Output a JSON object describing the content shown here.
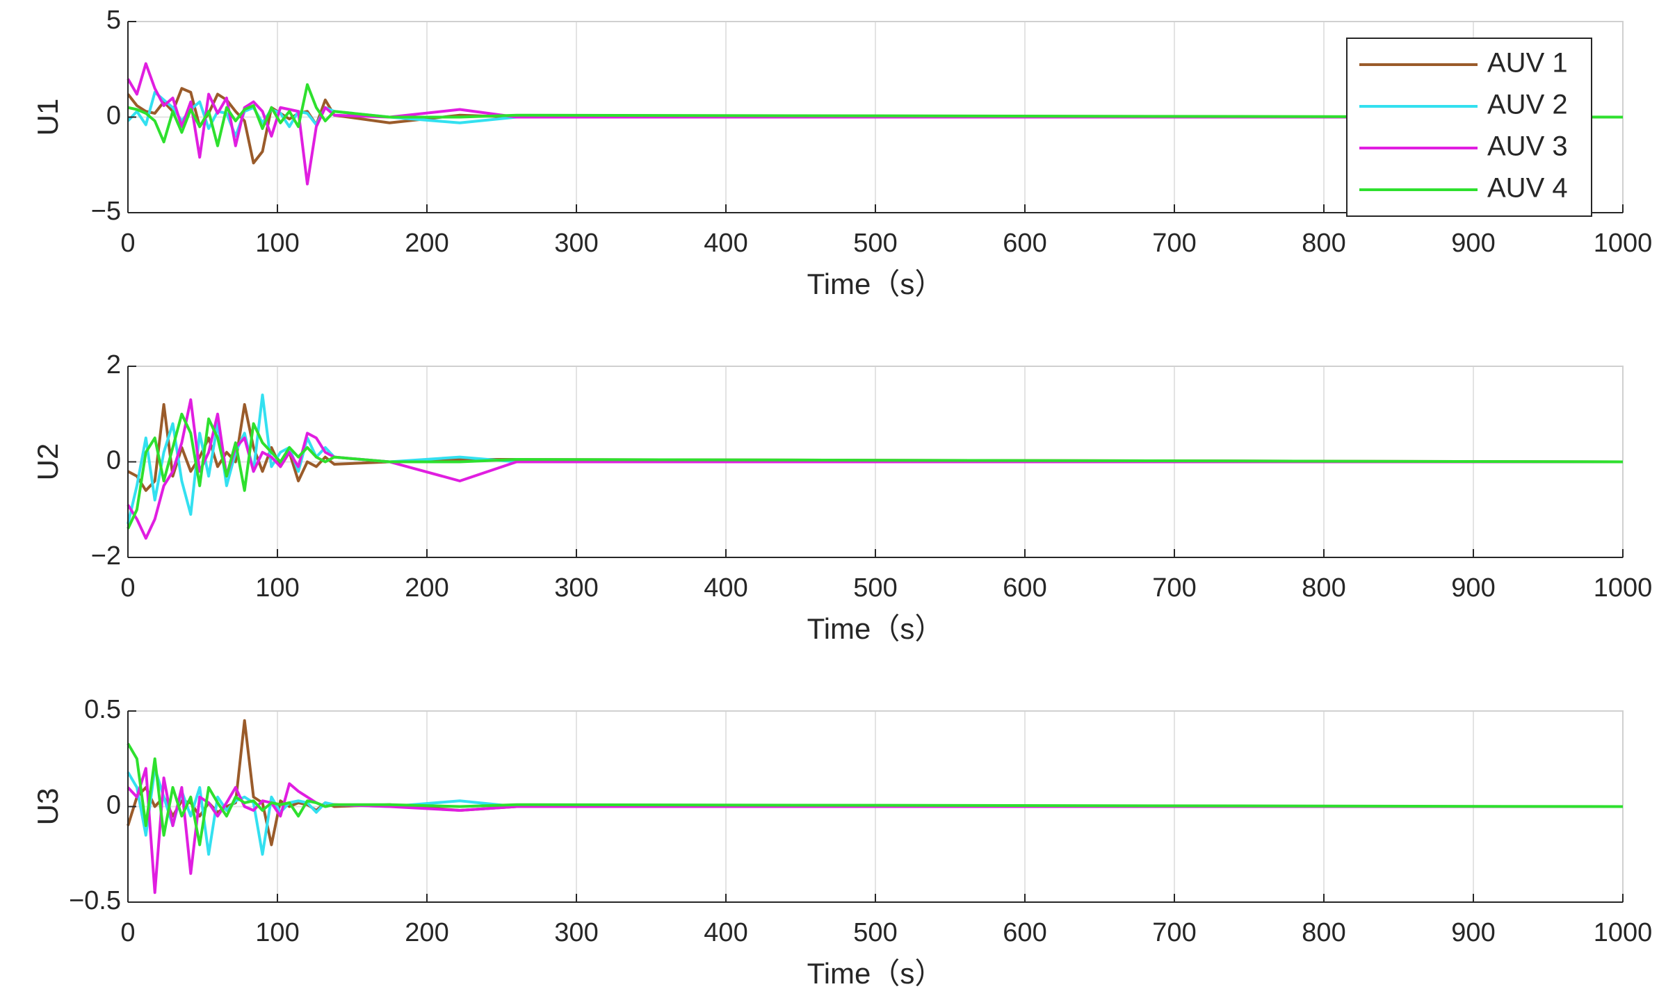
{
  "chart_data": [
    {
      "type": "line",
      "ylabel": "U1",
      "xlabel": "Time（s）",
      "grid": true,
      "legend": "upper right",
      "x": [
        0,
        6,
        12,
        18,
        24,
        30,
        36,
        42,
        48,
        54,
        60,
        66,
        72,
        78,
        84,
        90,
        96,
        102,
        108,
        114,
        120,
        126,
        132,
        138,
        175,
        222,
        260,
        1000
      ],
      "xlim": [
        0,
        1000
      ],
      "xticks": [
        0,
        100,
        200,
        300,
        400,
        500,
        600,
        700,
        800,
        900,
        1000
      ],
      "ylim": [
        -5,
        5
      ],
      "yticks": [
        {
          "value": -5,
          "label": "−5"
        },
        0,
        5
      ],
      "series": [
        {
          "name": "AUV 1",
          "color": "#9a5b2a",
          "values": [
            1.2,
            0.6,
            0.3,
            0.2,
            0.8,
            0.3,
            1.5,
            1.3,
            -0.5,
            0.2,
            1.2,
            0.9,
            0.3,
            -0.2,
            -2.4,
            -1.8,
            0.5,
            0.2,
            -0.1,
            0.2,
            0.3,
            -0.4,
            0.9,
            0.1,
            -0.3,
            0.1,
            0,
            0
          ]
        },
        {
          "name": "AUV 2",
          "color": "#33e0f0",
          "values": [
            -0.2,
            0.3,
            -0.4,
            1.3,
            0.9,
            0.5,
            -0.2,
            0.4,
            0.8,
            -0.6,
            0.3,
            0.2,
            -1.0,
            0.3,
            0.5,
            -0.3,
            0.4,
            0.2,
            -0.5,
            0.3,
            0.2,
            -0.4,
            0.5,
            0.3,
            0,
            -0.3,
            0,
            0
          ]
        },
        {
          "name": "AUV 3",
          "color": "#e01ee0",
          "values": [
            2.0,
            1.2,
            2.8,
            1.5,
            0.6,
            1.0,
            -0.5,
            0.8,
            -2.1,
            1.2,
            0.2,
            1.0,
            -1.5,
            0.5,
            0.8,
            0.3,
            -1.0,
            0.5,
            0.4,
            0.3,
            -3.5,
            -0.5,
            0.5,
            0.1,
            0,
            0.4,
            0,
            0
          ]
        },
        {
          "name": "AUV 4",
          "color": "#2ee02e",
          "values": [
            0.5,
            0.4,
            0.2,
            -0.2,
            -1.3,
            0.3,
            -0.8,
            0.4,
            -0.5,
            0.3,
            -1.5,
            0.5,
            -0.2,
            0.4,
            0.6,
            -0.6,
            0.5,
            -0.3,
            0.3,
            -0.5,
            1.7,
            0.5,
            -0.2,
            0.3,
            0,
            0,
            0.1,
            0
          ]
        }
      ]
    },
    {
      "type": "line",
      "ylabel": "U2",
      "xlabel": "Time（s）",
      "grid": true,
      "x": [
        0,
        6,
        12,
        18,
        24,
        30,
        36,
        42,
        48,
        54,
        60,
        66,
        72,
        78,
        84,
        90,
        96,
        102,
        108,
        114,
        120,
        126,
        132,
        138,
        175,
        222,
        260,
        1000
      ],
      "xlim": [
        0,
        1000
      ],
      "xticks": [
        0,
        100,
        200,
        300,
        400,
        500,
        600,
        700,
        800,
        900,
        1000
      ],
      "ylim": [
        -2,
        2
      ],
      "yticks": [
        {
          "value": -2,
          "label": "−2"
        },
        0,
        2
      ],
      "series": [
        {
          "color": "#9a5b2a",
          "values": [
            -0.2,
            -0.3,
            -0.6,
            -0.4,
            1.2,
            -0.3,
            0.3,
            -0.2,
            0.1,
            0.5,
            -0.1,
            0.2,
            0.0,
            1.2,
            0.3,
            -0.2,
            0.3,
            -0.1,
            0.2,
            -0.4,
            0.0,
            -0.1,
            0.1,
            -0.05,
            0,
            0.05,
            0.05,
            0
          ]
        },
        {
          "color": "#33e0f0",
          "values": [
            -1.3,
            -0.5,
            0.5,
            -0.8,
            0.2,
            0.8,
            -0.4,
            -1.1,
            0.6,
            -0.3,
            0.8,
            -0.5,
            0.2,
            0.6,
            -0.2,
            1.4,
            -0.1,
            0.2,
            0.3,
            -0.2,
            0.5,
            0.1,
            0.3,
            0.1,
            0,
            0.1,
            0,
            0
          ]
        },
        {
          "color": "#e01ee0",
          "values": [
            -0.9,
            -1.2,
            -1.6,
            -1.2,
            -0.5,
            -0.2,
            0.4,
            1.3,
            -0.2,
            0.2,
            1.0,
            -0.3,
            0.3,
            0.5,
            -0.2,
            0.2,
            0.1,
            -0.1,
            0.2,
            -0.1,
            0.6,
            0.5,
            0.2,
            0.1,
            0,
            -0.4,
            0,
            0
          ]
        },
        {
          "color": "#2ee02e",
          "values": [
            -1.4,
            -1.0,
            0.2,
            0.5,
            -0.4,
            0.3,
            1.0,
            0.6,
            -0.5,
            0.9,
            0.5,
            -0.3,
            0.4,
            -0.6,
            0.8,
            0.4,
            0.2,
            0.0,
            0.3,
            0.1,
            0.3,
            0.1,
            0.0,
            0.1,
            0,
            0,
            0.05,
            0
          ]
        }
      ]
    },
    {
      "type": "line",
      "ylabel": "U3",
      "xlabel": "Time（s）",
      "grid": true,
      "x": [
        0,
        6,
        12,
        18,
        24,
        30,
        36,
        42,
        48,
        54,
        60,
        66,
        72,
        78,
        84,
        90,
        96,
        102,
        108,
        114,
        120,
        126,
        132,
        138,
        175,
        222,
        260,
        1000
      ],
      "xlim": [
        0,
        1000
      ],
      "xticks": [
        0,
        100,
        200,
        300,
        400,
        500,
        600,
        700,
        800,
        900,
        1000
      ],
      "ylim": [
        -0.5,
        0.5
      ],
      "yticks": [
        {
          "value": -0.5,
          "label": "−0.5"
        },
        0,
        0.5
      ],
      "series": [
        {
          "color": "#9a5b2a",
          "values": [
            -0.1,
            0.05,
            0.1,
            0.0,
            0.05,
            -0.05,
            0.03,
            0.02,
            -0.05,
            0.02,
            -0.03,
            0.0,
            0.02,
            0.45,
            0.05,
            0.02,
            -0.2,
            0.03,
            0.0,
            0.02,
            0.01,
            -0.02,
            0.02,
            0.0,
            0.01,
            -0.02,
            0,
            0
          ]
        },
        {
          "color": "#33e0f0",
          "values": [
            0.18,
            0.1,
            -0.15,
            0.2,
            0.05,
            -0.1,
            0.08,
            -0.05,
            0.1,
            -0.25,
            0.05,
            -0.02,
            0.03,
            0.05,
            0.02,
            -0.25,
            0.05,
            -0.03,
            0.02,
            0.03,
            0.02,
            -0.03,
            0.02,
            0.01,
            0,
            0.03,
            0,
            0
          ]
        },
        {
          "color": "#e01ee0",
          "values": [
            0.1,
            0.05,
            0.2,
            -0.45,
            0.15,
            -0.1,
            0.1,
            -0.35,
            0.05,
            0.02,
            -0.05,
            0.02,
            0.1,
            0.0,
            -0.02,
            0.03,
            0.02,
            -0.05,
            0.12,
            0.08,
            0.05,
            0.02,
            0.0,
            0.01,
            0,
            -0.02,
            0,
            0
          ]
        },
        {
          "color": "#2ee02e",
          "values": [
            0.33,
            0.25,
            -0.1,
            0.25,
            -0.15,
            0.1,
            -0.05,
            0.05,
            -0.2,
            0.1,
            0.02,
            -0.05,
            0.05,
            0.02,
            0.03,
            -0.02,
            0.02,
            0.01,
            0.02,
            -0.05,
            0.03,
            0.02,
            0.0,
            0.01,
            0.01,
            0,
            0.01,
            0
          ]
        }
      ]
    }
  ]
}
